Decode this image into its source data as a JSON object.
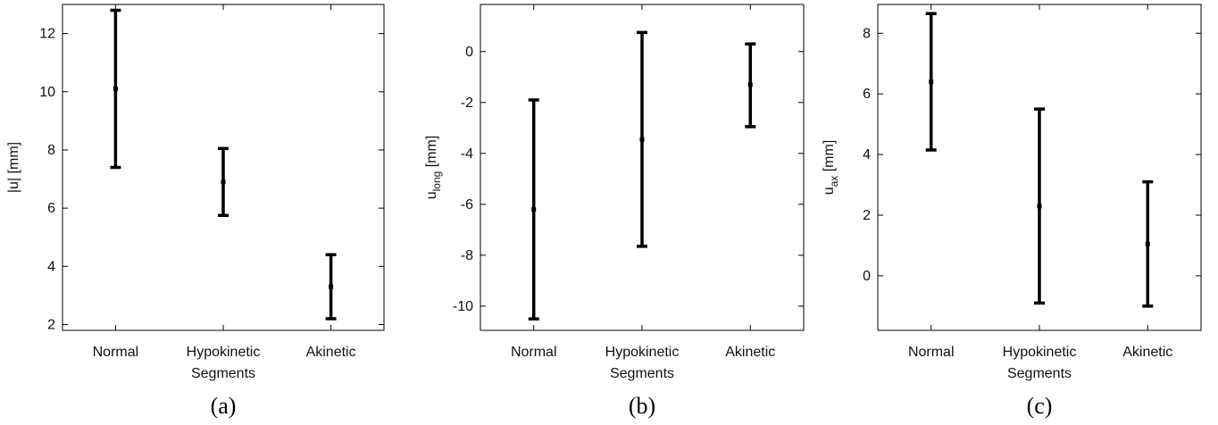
{
  "figure": {
    "panels": [
      {
        "panel_label": "(a)",
        "y_label_main": "|u|",
        "y_label_sub": "",
        "y_label_unit": " [mm]"
      },
      {
        "panel_label": "(b)",
        "y_label_main": "u",
        "y_label_sub": "long",
        "y_label_unit": " [mm]"
      },
      {
        "panel_label": "(c)",
        "y_label_main": "u",
        "y_label_sub": "ax",
        "y_label_unit": " [mm]"
      }
    ]
  },
  "chart_data": [
    {
      "type": "errorbar",
      "categories": [
        [
          "Normal"
        ],
        [
          "Hypokinetic",
          "Segments"
        ],
        [
          "Akinetic"
        ]
      ],
      "mean": [
        10.1,
        6.9,
        3.3
      ],
      "lower": [
        7.4,
        5.75,
        2.2
      ],
      "upper": [
        12.8,
        8.05,
        4.4
      ],
      "ylim": [
        1.8,
        13.0
      ],
      "yticks": [
        2,
        4,
        6,
        8,
        10,
        12
      ],
      "ytick_labels": [
        "2",
        "4",
        "6",
        "8",
        "10",
        "12"
      ],
      "ylabel": "|u| [mm]",
      "grid": false
    },
    {
      "type": "errorbar",
      "categories": [
        [
          "Normal"
        ],
        [
          "Hypokinetic",
          "Segments"
        ],
        [
          "Akinetic"
        ]
      ],
      "mean": [
        -6.2,
        -3.45,
        -1.3
      ],
      "lower": [
        -10.5,
        -7.65,
        -2.95
      ],
      "upper": [
        -1.9,
        0.75,
        0.3
      ],
      "ylim": [
        -10.95,
        1.85
      ],
      "yticks": [
        -10,
        -8,
        -6,
        -4,
        -2,
        0
      ],
      "ytick_labels": [
        "-10",
        "-8",
        "-6",
        "-4",
        "-2",
        "0"
      ],
      "ylabel": "u_long [mm]",
      "grid": false
    },
    {
      "type": "errorbar",
      "categories": [
        [
          "Normal"
        ],
        [
          "Hypokinetic",
          "Segments"
        ],
        [
          "Akinetic"
        ]
      ],
      "mean": [
        6.4,
        2.3,
        1.05
      ],
      "lower": [
        4.15,
        -0.9,
        -1.0
      ],
      "upper": [
        8.65,
        5.5,
        3.1
      ],
      "ylim": [
        -1.8,
        8.95
      ],
      "yticks": [
        0,
        2,
        4,
        6,
        8
      ],
      "ytick_labels": [
        "0",
        "2",
        "4",
        "6",
        "8"
      ],
      "ylabel": "u_ax [mm]",
      "grid": false
    }
  ]
}
